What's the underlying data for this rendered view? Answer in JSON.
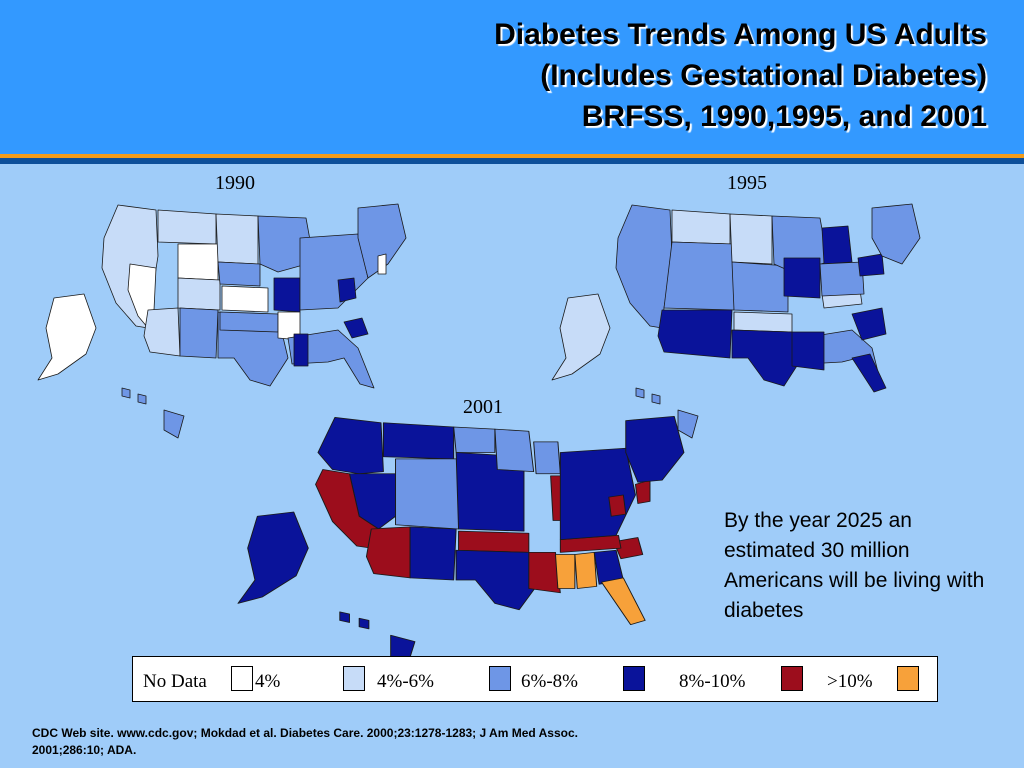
{
  "header": {
    "title_line1": "Diabetes Trends Among US Adults",
    "title_line2": "(Includes Gestational Diabetes)",
    "title_line3": "BRFSS, 1990,1995, and 2001"
  },
  "maps": [
    {
      "year": "1990"
    },
    {
      "year": "1995"
    },
    {
      "year": "2001"
    }
  ],
  "note": "By the year 2025 an estimated 30 million Americans will be living with diabetes",
  "legend": {
    "no_data": "No Data",
    "items": [
      {
        "label": "4%",
        "color": "#ffffff"
      },
      {
        "label": "4%-6%",
        "color": "#c7dcf8"
      },
      {
        "label": "6%-8%",
        "color": "#6e96e6"
      },
      {
        "label": "8%-10%",
        "color": "#0a139a"
      },
      {
        "label": ">10%",
        "color": "#9c0d1c"
      },
      {
        "label": "",
        "color": "#f7a13a"
      }
    ]
  },
  "source": "CDC Web site. www.cdc.gov; Mokdad et al. Diabetes Care. 2000;23:1278-1283; J Am Med Assoc. 2001;286:10; ADA.",
  "colors": {
    "background": "#9fccf9",
    "header": "#3399ff",
    "accent_orange": "#f39c1b",
    "accent_dark": "#0d4f9a"
  }
}
